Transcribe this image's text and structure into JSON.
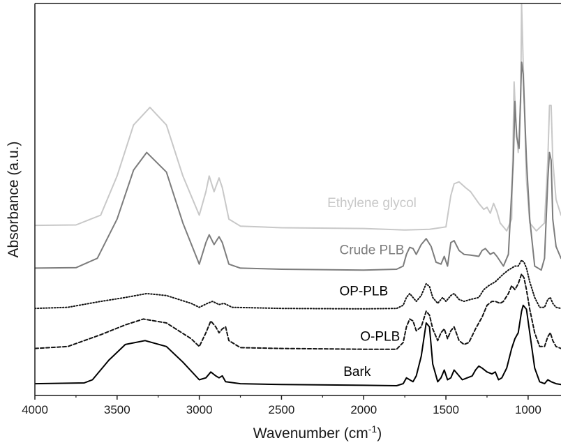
{
  "chart_data": {
    "type": "line",
    "xlabel": "Wavenumber (cm",
    "xlabel_sup": "-1",
    "xlabel_close": ")",
    "ylabel": "Absorbance (a.u.)",
    "xlim": [
      4000,
      800
    ],
    "x_reversed": true,
    "ylim": [
      0,
      1
    ],
    "y_ticks_shown": false,
    "x_ticks": [
      4000,
      3500,
      3000,
      2500,
      2000,
      1500,
      1000
    ],
    "x_tick_labels": [
      "4000",
      "3500",
      "3000",
      "2500",
      "2000",
      "1500",
      "1000"
    ],
    "grid": false,
    "legend": "none",
    "series": [
      {
        "name": "Ethylene glycol",
        "color": "#c8c8c8",
        "dash": "solid",
        "label_x": 1950,
        "label_y": 0.48,
        "points": [
          [
            4000,
            0.434
          ],
          [
            3750,
            0.435
          ],
          [
            3600,
            0.46
          ],
          [
            3500,
            0.56
          ],
          [
            3400,
            0.69
          ],
          [
            3300,
            0.735
          ],
          [
            3200,
            0.69
          ],
          [
            3100,
            0.56
          ],
          [
            3000,
            0.46
          ],
          [
            2960,
            0.52
          ],
          [
            2940,
            0.56
          ],
          [
            2910,
            0.52
          ],
          [
            2880,
            0.555
          ],
          [
            2860,
            0.53
          ],
          [
            2820,
            0.45
          ],
          [
            2750,
            0.432
          ],
          [
            2500,
            0.428
          ],
          [
            2000,
            0.426
          ],
          [
            1750,
            0.422
          ],
          [
            1600,
            0.424
          ],
          [
            1500,
            0.43
          ],
          [
            1470,
            0.51
          ],
          [
            1450,
            0.54
          ],
          [
            1420,
            0.545
          ],
          [
            1380,
            0.53
          ],
          [
            1350,
            0.52
          ],
          [
            1300,
            0.49
          ],
          [
            1270,
            0.475
          ],
          [
            1250,
            0.48
          ],
          [
            1230,
            0.465
          ],
          [
            1210,
            0.49
          ],
          [
            1190,
            0.47
          ],
          [
            1170,
            0.44
          ],
          [
            1130,
            0.42
          ],
          [
            1100,
            0.45
          ],
          [
            1085,
            0.8
          ],
          [
            1075,
            0.7
          ],
          [
            1060,
            0.62
          ],
          [
            1045,
            0.75
          ],
          [
            1040,
            1.0
          ],
          [
            1030,
            0.85
          ],
          [
            1010,
            0.55
          ],
          [
            990,
            0.44
          ],
          [
            950,
            0.42
          ],
          [
            900,
            0.44
          ],
          [
            880,
            0.6
          ],
          [
            870,
            0.74
          ],
          [
            860,
            0.74
          ],
          [
            850,
            0.6
          ],
          [
            830,
            0.5
          ],
          [
            800,
            0.46
          ]
        ]
      },
      {
        "name": "Crude PLB",
        "color": "#7c7c7c",
        "dash": "solid",
        "label_x": 1950,
        "label_y": 0.36,
        "points": [
          [
            4000,
            0.325
          ],
          [
            3750,
            0.326
          ],
          [
            3620,
            0.35
          ],
          [
            3500,
            0.45
          ],
          [
            3400,
            0.575
          ],
          [
            3320,
            0.62
          ],
          [
            3200,
            0.57
          ],
          [
            3100,
            0.44
          ],
          [
            3000,
            0.335
          ],
          [
            2960,
            0.39
          ],
          [
            2940,
            0.41
          ],
          [
            2910,
            0.385
          ],
          [
            2880,
            0.405
          ],
          [
            2860,
            0.39
          ],
          [
            2820,
            0.335
          ],
          [
            2750,
            0.325
          ],
          [
            2500,
            0.322
          ],
          [
            2000,
            0.32
          ],
          [
            1800,
            0.322
          ],
          [
            1760,
            0.33
          ],
          [
            1740,
            0.36
          ],
          [
            1720,
            0.378
          ],
          [
            1700,
            0.375
          ],
          [
            1680,
            0.36
          ],
          [
            1650,
            0.385
          ],
          [
            1620,
            0.4
          ],
          [
            1590,
            0.38
          ],
          [
            1560,
            0.34
          ],
          [
            1530,
            0.335
          ],
          [
            1510,
            0.355
          ],
          [
            1490,
            0.33
          ],
          [
            1470,
            0.39
          ],
          [
            1450,
            0.395
          ],
          [
            1420,
            0.37
          ],
          [
            1390,
            0.36
          ],
          [
            1350,
            0.358
          ],
          [
            1300,
            0.355
          ],
          [
            1280,
            0.37
          ],
          [
            1260,
            0.375
          ],
          [
            1230,
            0.36
          ],
          [
            1210,
            0.365
          ],
          [
            1190,
            0.355
          ],
          [
            1150,
            0.33
          ],
          [
            1120,
            0.36
          ],
          [
            1090,
            0.6
          ],
          [
            1080,
            0.75
          ],
          [
            1070,
            0.66
          ],
          [
            1055,
            0.63
          ],
          [
            1040,
            0.85
          ],
          [
            1030,
            0.82
          ],
          [
            1010,
            0.6
          ],
          [
            990,
            0.45
          ],
          [
            960,
            0.33
          ],
          [
            920,
            0.32
          ],
          [
            900,
            0.35
          ],
          [
            880,
            0.55
          ],
          [
            870,
            0.62
          ],
          [
            860,
            0.6
          ],
          [
            850,
            0.45
          ],
          [
            830,
            0.38
          ],
          [
            800,
            0.35
          ]
        ]
      },
      {
        "name": "OP-PLB",
        "color": "#111111",
        "dash": "dotted",
        "label_x": 2000,
        "label_y": 0.255,
        "points": [
          [
            4000,
            0.222
          ],
          [
            3800,
            0.225
          ],
          [
            3600,
            0.24
          ],
          [
            3450,
            0.25
          ],
          [
            3320,
            0.26
          ],
          [
            3200,
            0.255
          ],
          [
            3050,
            0.235
          ],
          [
            3000,
            0.225
          ],
          [
            2950,
            0.235
          ],
          [
            2920,
            0.24
          ],
          [
            2880,
            0.232
          ],
          [
            2850,
            0.235
          ],
          [
            2800,
            0.225
          ],
          [
            2500,
            0.222
          ],
          [
            2000,
            0.221
          ],
          [
            1800,
            0.222
          ],
          [
            1760,
            0.23
          ],
          [
            1740,
            0.25
          ],
          [
            1720,
            0.26
          ],
          [
            1700,
            0.25
          ],
          [
            1680,
            0.24
          ],
          [
            1650,
            0.255
          ],
          [
            1620,
            0.285
          ],
          [
            1600,
            0.278
          ],
          [
            1580,
            0.25
          ],
          [
            1550,
            0.235
          ],
          [
            1520,
            0.25
          ],
          [
            1500,
            0.24
          ],
          [
            1470,
            0.255
          ],
          [
            1450,
            0.26
          ],
          [
            1420,
            0.245
          ],
          [
            1390,
            0.24
          ],
          [
            1350,
            0.245
          ],
          [
            1300,
            0.25
          ],
          [
            1270,
            0.27
          ],
          [
            1240,
            0.28
          ],
          [
            1200,
            0.29
          ],
          [
            1150,
            0.31
          ],
          [
            1120,
            0.32
          ],
          [
            1080,
            0.33
          ],
          [
            1060,
            0.33
          ],
          [
            1040,
            0.345
          ],
          [
            1025,
            0.34
          ],
          [
            1010,
            0.325
          ],
          [
            990,
            0.29
          ],
          [
            960,
            0.25
          ],
          [
            930,
            0.225
          ],
          [
            900,
            0.225
          ],
          [
            880,
            0.245
          ],
          [
            865,
            0.25
          ],
          [
            850,
            0.235
          ],
          [
            830,
            0.225
          ],
          [
            800,
            0.222
          ]
        ]
      },
      {
        "name": "O-PLB",
        "color": "#111111",
        "dash": "dashed",
        "label_x": 1900,
        "label_y": 0.14,
        "points": [
          [
            4000,
            0.12
          ],
          [
            3800,
            0.125
          ],
          [
            3600,
            0.155
          ],
          [
            3450,
            0.18
          ],
          [
            3340,
            0.195
          ],
          [
            3200,
            0.185
          ],
          [
            3050,
            0.145
          ],
          [
            3000,
            0.125
          ],
          [
            2960,
            0.16
          ],
          [
            2930,
            0.19
          ],
          [
            2900,
            0.175
          ],
          [
            2880,
            0.16
          ],
          [
            2860,
            0.17
          ],
          [
            2840,
            0.175
          ],
          [
            2820,
            0.14
          ],
          [
            2750,
            0.122
          ],
          [
            2500,
            0.12
          ],
          [
            2000,
            0.118
          ],
          [
            1800,
            0.118
          ],
          [
            1760,
            0.135
          ],
          [
            1740,
            0.175
          ],
          [
            1720,
            0.195
          ],
          [
            1700,
            0.19
          ],
          [
            1680,
            0.165
          ],
          [
            1650,
            0.175
          ],
          [
            1620,
            0.215
          ],
          [
            1600,
            0.205
          ],
          [
            1580,
            0.17
          ],
          [
            1550,
            0.14
          ],
          [
            1530,
            0.16
          ],
          [
            1510,
            0.17
          ],
          [
            1490,
            0.145
          ],
          [
            1470,
            0.165
          ],
          [
            1450,
            0.175
          ],
          [
            1420,
            0.14
          ],
          [
            1390,
            0.13
          ],
          [
            1360,
            0.135
          ],
          [
            1320,
            0.17
          ],
          [
            1280,
            0.2
          ],
          [
            1250,
            0.23
          ],
          [
            1220,
            0.24
          ],
          [
            1200,
            0.24
          ],
          [
            1170,
            0.235
          ],
          [
            1150,
            0.24
          ],
          [
            1120,
            0.26
          ],
          [
            1100,
            0.28
          ],
          [
            1080,
            0.27
          ],
          [
            1060,
            0.285
          ],
          [
            1040,
            0.31
          ],
          [
            1025,
            0.3
          ],
          [
            1010,
            0.27
          ],
          [
            990,
            0.22
          ],
          [
            960,
            0.16
          ],
          [
            930,
            0.125
          ],
          [
            900,
            0.125
          ],
          [
            880,
            0.15
          ],
          [
            865,
            0.16
          ],
          [
            850,
            0.14
          ],
          [
            830,
            0.125
          ],
          [
            800,
            0.12
          ]
        ]
      },
      {
        "name": "Bark",
        "color": "#000000",
        "dash": "solid",
        "label_x": 2040,
        "label_y": 0.05,
        "points": [
          [
            4000,
            0.03
          ],
          [
            3700,
            0.032
          ],
          [
            3650,
            0.04
          ],
          [
            3550,
            0.09
          ],
          [
            3450,
            0.13
          ],
          [
            3330,
            0.14
          ],
          [
            3200,
            0.125
          ],
          [
            3100,
            0.085
          ],
          [
            3000,
            0.04
          ],
          [
            2960,
            0.045
          ],
          [
            2930,
            0.06
          ],
          [
            2900,
            0.05
          ],
          [
            2880,
            0.045
          ],
          [
            2860,
            0.05
          ],
          [
            2840,
            0.035
          ],
          [
            2750,
            0.03
          ],
          [
            2500,
            0.028
          ],
          [
            2000,
            0.026
          ],
          [
            1800,
            0.025
          ],
          [
            1760,
            0.03
          ],
          [
            1740,
            0.045
          ],
          [
            1720,
            0.04
          ],
          [
            1700,
            0.035
          ],
          [
            1680,
            0.05
          ],
          [
            1650,
            0.1
          ],
          [
            1620,
            0.185
          ],
          [
            1600,
            0.175
          ],
          [
            1580,
            0.08
          ],
          [
            1550,
            0.035
          ],
          [
            1530,
            0.045
          ],
          [
            1510,
            0.065
          ],
          [
            1490,
            0.04
          ],
          [
            1470,
            0.045
          ],
          [
            1450,
            0.065
          ],
          [
            1430,
            0.055
          ],
          [
            1400,
            0.04
          ],
          [
            1370,
            0.045
          ],
          [
            1340,
            0.05
          ],
          [
            1320,
            0.065
          ],
          [
            1300,
            0.075
          ],
          [
            1280,
            0.07
          ],
          [
            1250,
            0.06
          ],
          [
            1220,
            0.055
          ],
          [
            1200,
            0.06
          ],
          [
            1180,
            0.04
          ],
          [
            1160,
            0.045
          ],
          [
            1130,
            0.07
          ],
          [
            1100,
            0.12
          ],
          [
            1080,
            0.145
          ],
          [
            1060,
            0.16
          ],
          [
            1040,
            0.215
          ],
          [
            1030,
            0.23
          ],
          [
            1010,
            0.22
          ],
          [
            990,
            0.16
          ],
          [
            960,
            0.07
          ],
          [
            930,
            0.035
          ],
          [
            900,
            0.03
          ],
          [
            880,
            0.04
          ],
          [
            860,
            0.035
          ],
          [
            830,
            0.03
          ],
          [
            800,
            0.028
          ]
        ]
      }
    ]
  }
}
